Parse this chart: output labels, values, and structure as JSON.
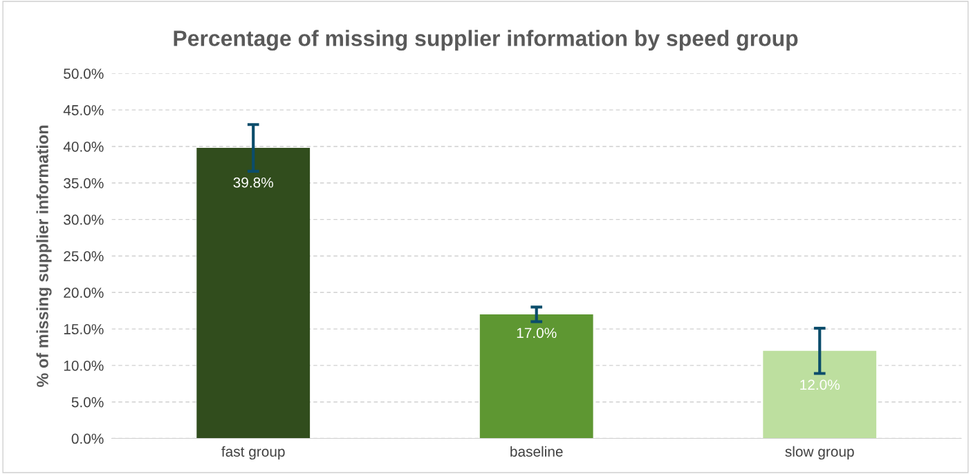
{
  "chart_data": {
    "type": "bar",
    "title": "Percentage of missing supplier information by speed group",
    "ylabel": "% of missing supplier information",
    "categories": [
      "fast group",
      "baseline",
      "slow group"
    ],
    "values": [
      39.8,
      17.0,
      12.0
    ],
    "colors": [
      "#314d1d",
      "#5e9732",
      "#bddf9f"
    ],
    "errors": [
      [
        36.6,
        43.0
      ],
      [
        16.0,
        18.0
      ],
      [
        8.9,
        15.1
      ]
    ],
    "value_labels": [
      "39.8%",
      "17.0%",
      "12.0%"
    ],
    "ylim": [
      0,
      50
    ],
    "yticks": [
      {
        "value": 0,
        "label": "0.0%"
      },
      {
        "value": 5,
        "label": "5.0%"
      },
      {
        "value": 10,
        "label": "10.0%"
      },
      {
        "value": 15,
        "label": "15.0%"
      },
      {
        "value": 20,
        "label": "20.0%"
      },
      {
        "value": 25,
        "label": "25.0%"
      },
      {
        "value": 30,
        "label": "30.0%"
      },
      {
        "value": 35,
        "label": "35.0%"
      },
      {
        "value": 40,
        "label": "40.0%"
      },
      {
        "value": 45,
        "label": "45.0%"
      },
      {
        "value": 50,
        "label": "50.0%"
      }
    ],
    "grid": "y"
  }
}
